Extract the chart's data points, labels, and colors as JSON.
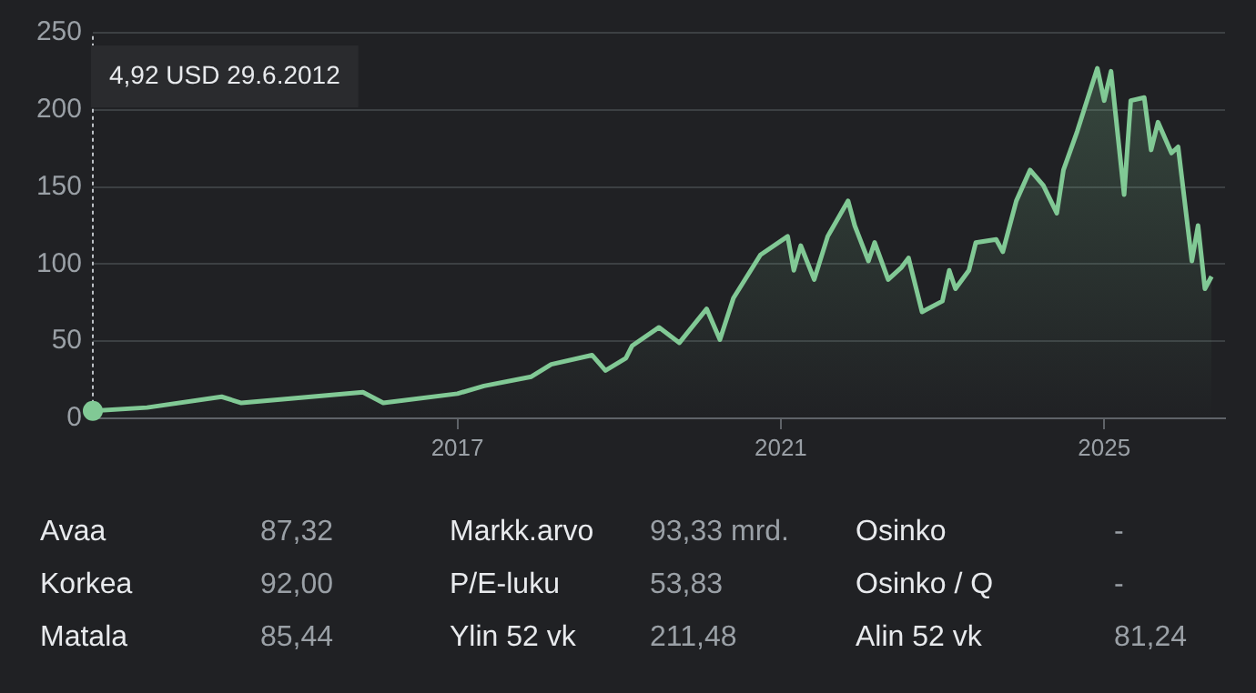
{
  "chart_data": {
    "type": "area",
    "x": [
      "2012-06-29",
      "2013-03",
      "2014-02",
      "2014-05",
      "2015-11",
      "2016-02",
      "2017-01",
      "2017-05",
      "2017-12",
      "2018-03",
      "2018-09",
      "2018-11",
      "2019-02",
      "2019-03",
      "2019-07",
      "2019-10",
      "2020-02",
      "2020-04",
      "2020-06",
      "2020-10",
      "2021-02",
      "2021-03",
      "2021-04",
      "2021-06",
      "2021-08",
      "2021-11",
      "2021-12",
      "2022-02",
      "2022-03",
      "2022-05",
      "2022-07",
      "2022-08",
      "2022-10",
      "2023-01",
      "2023-02",
      "2023-03",
      "2023-05",
      "2023-06",
      "2023-09",
      "2023-10",
      "2023-12",
      "2024-02",
      "2024-04",
      "2024-06",
      "2024-07",
      "2024-09",
      "2024-12",
      "2025-01",
      "2025-02",
      "2025-04",
      "2025-05",
      "2025-07",
      "2025-08",
      "2025-09",
      "2025-11",
      "2025-12",
      "2026-02",
      "2026-03",
      "2026-04",
      "2026-05"
    ],
    "series": [
      {
        "color": "#81c995",
        "values": [
          4.92,
          7,
          14,
          10,
          17,
          10,
          16,
          21,
          27,
          35,
          41,
          31,
          39,
          47,
          59,
          49,
          71,
          51,
          78,
          106,
          118,
          96,
          112,
          90,
          118,
          141,
          125,
          102,
          114,
          90,
          98,
          104,
          69,
          76,
          96,
          84,
          96,
          114,
          116,
          108,
          141,
          161,
          151,
          133,
          161,
          186,
          227,
          206,
          225,
          145,
          206,
          208,
          174,
          192,
          172,
          176,
          102,
          125,
          84,
          92
        ]
      }
    ],
    "xlim": [
      "2012-06-29",
      "2026-07"
    ],
    "xticks": [
      "2017",
      "2021",
      "2025"
    ],
    "ylim": [
      0,
      250
    ],
    "yticks": [
      0,
      50,
      100,
      150,
      200,
      250
    ],
    "grid": "y",
    "marker": "none",
    "legend": false,
    "annotations": [
      "4,92 USD 29.6.2012",
      "Avaa",
      "87,32",
      "Markk.arvo",
      "93,33 mrd.",
      "Osinko",
      "-",
      "Korkea",
      "92,00",
      "P/E-luku",
      "53,83",
      "Osinko / Q",
      "-",
      "Matala",
      "85,44",
      "Ylin 52 vk",
      "211,48",
      "Alin 52 vk",
      "81,24"
    ]
  }
}
